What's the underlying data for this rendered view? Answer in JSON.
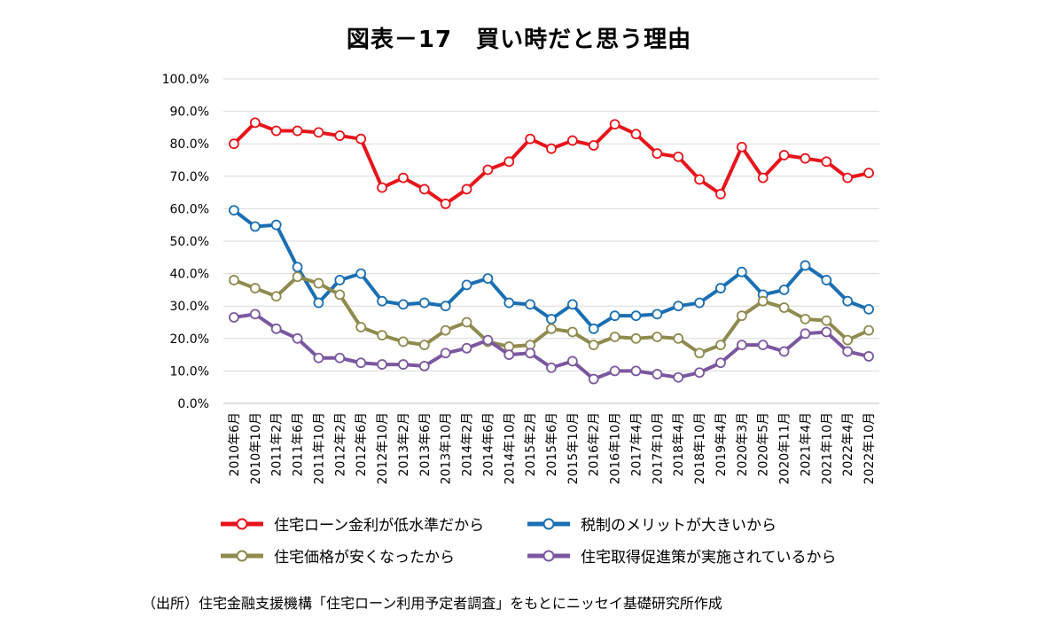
{
  "title": "図表－17　買い時だと思う理由",
  "source": "（出所）住宅金融支援機構「住宅ローン利用予定者調査」をもとにニッセイ基礎研究所作成",
  "chart_data": {
    "type": "line",
    "title": "図表－17　買い時だと思う理由",
    "ylim": [
      0,
      100
    ],
    "yticks": [
      "100.0%",
      "90.0%",
      "80.0%",
      "70.0%",
      "60.0%",
      "50.0%",
      "40.0%",
      "30.0%",
      "20.0%",
      "10.0%",
      "0.0%"
    ],
    "ytick_values": [
      100,
      90,
      80,
      70,
      60,
      50,
      40,
      30,
      20,
      10,
      0
    ],
    "grid": true,
    "categories": [
      "2010年6月",
      "2010年10月",
      "2011年2月",
      "2011年6月",
      "2011年10月",
      "2012年2月",
      "2012年6月",
      "2012年10月",
      "2013年2月",
      "2013年6月",
      "2013年10月",
      "2014年2月",
      "2014年6月",
      "2014年10月",
      "2015年2月",
      "2015年6月",
      "2015年10月",
      "2016年2月",
      "2016年10月",
      "2017年4月",
      "2017年10月",
      "2018年4月",
      "2018年10月",
      "2019年4月",
      "2020年3月",
      "2020年5月",
      "2020年11月",
      "2021年4月",
      "2021年10月",
      "2022年4月",
      "2022年10月"
    ],
    "series": [
      {
        "name": "住宅ローン金利が低水準だから",
        "color": "#e8141b",
        "values": [
          80,
          86.5,
          84,
          84,
          83.5,
          82.5,
          81.5,
          66.5,
          69.5,
          66,
          61.5,
          66,
          72,
          74.5,
          81.5,
          78.5,
          81,
          79.5,
          86,
          83,
          77,
          76,
          69,
          64.5,
          79,
          69.5,
          76.5,
          75.5,
          74.5,
          69.5,
          71
        ]
      },
      {
        "name": "税制のメリットが大きいから",
        "color": "#1a6fb4",
        "values": [
          59.5,
          54.5,
          55,
          42,
          31,
          38,
          40,
          31.5,
          30.5,
          31,
          30,
          36.5,
          38.5,
          31,
          30.5,
          26,
          30.5,
          23,
          27,
          27,
          27.5,
          30,
          31,
          35.5,
          40.5,
          33.5,
          35,
          42.5,
          38,
          31.5,
          29
        ]
      },
      {
        "name": "住宅価格が安くなったから",
        "color": "#8f8a4e",
        "values": [
          38,
          35.5,
          33,
          39,
          37,
          33.5,
          23.5,
          21,
          19,
          18,
          22.5,
          25,
          19,
          17.5,
          18,
          23,
          22,
          18,
          20.5,
          20,
          20.5,
          20,
          15.5,
          18,
          27,
          31.5,
          29.5,
          26,
          25.5,
          19.5,
          22.5
        ]
      },
      {
        "name": "住宅取得促進策が実施されているから",
        "color": "#7b57a0",
        "values": [
          26.5,
          27.5,
          23,
          20,
          14,
          14,
          12.5,
          12,
          12,
          11.5,
          15.5,
          17,
          19.5,
          15,
          15.5,
          11,
          13,
          7.5,
          10,
          10,
          9,
          8,
          9.5,
          12.5,
          18,
          18,
          16,
          21.5,
          22,
          16,
          14.5
        ]
      }
    ]
  },
  "legend": [
    {
      "label": "住宅ローン金利が低水準だから",
      "color": "#e8141b"
    },
    {
      "label": "税制のメリットが大きいから",
      "color": "#1a6fb4"
    },
    {
      "label": "住宅価格が安くなったから",
      "color": "#8f8a4e"
    },
    {
      "label": "住宅取得促進策が実施されているから",
      "color": "#7b57a0"
    }
  ]
}
